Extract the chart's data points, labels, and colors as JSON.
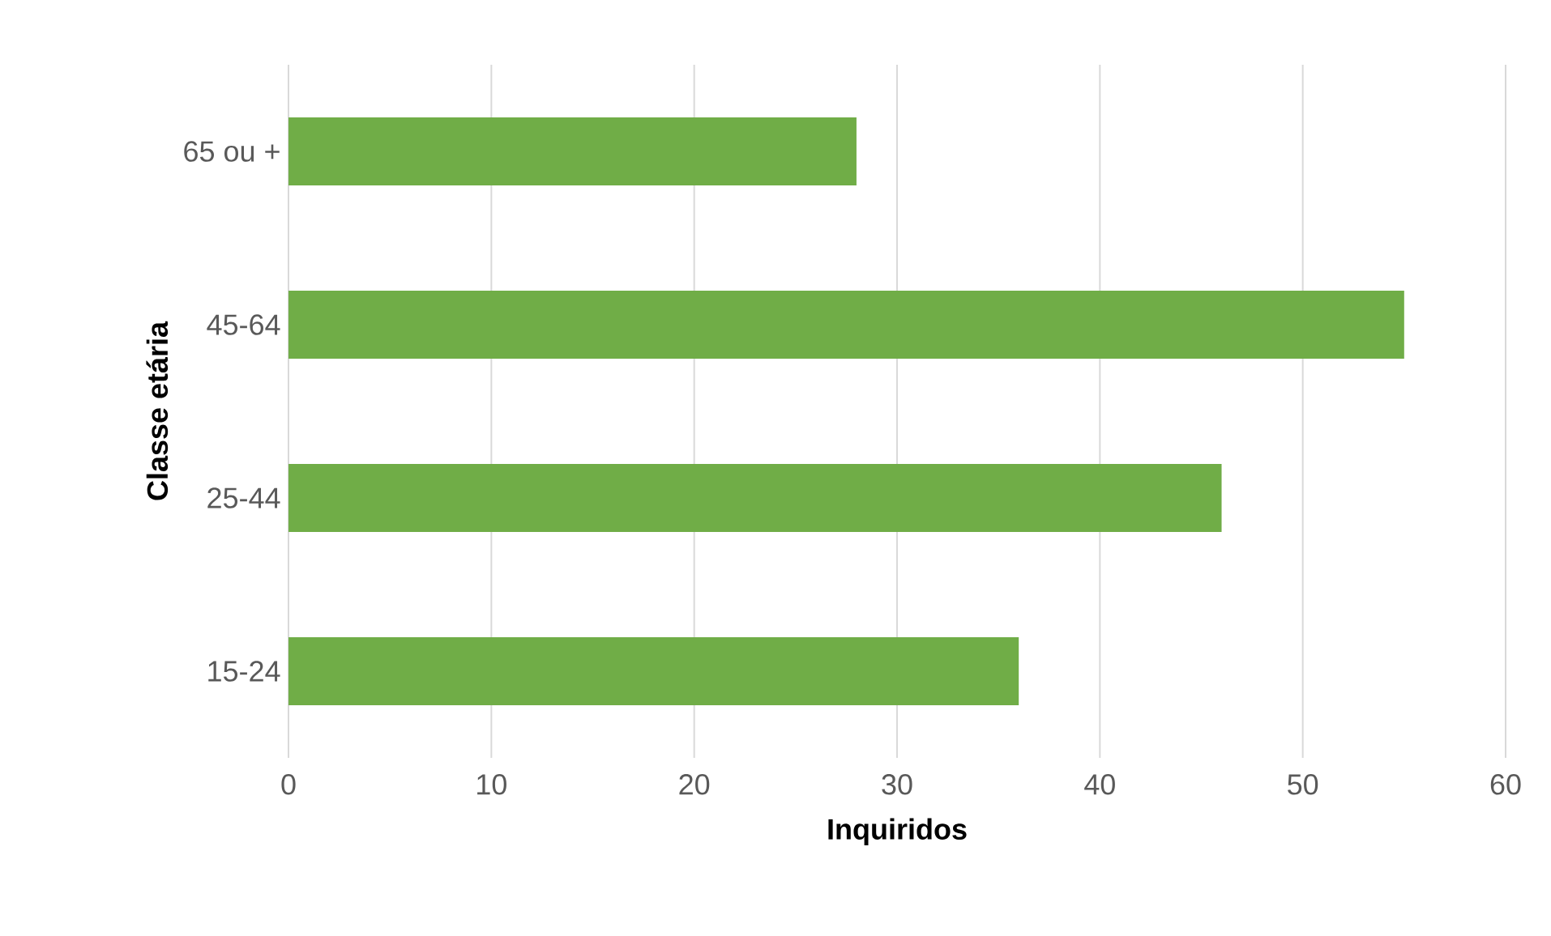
{
  "chart_data": {
    "type": "bar",
    "orientation": "horizontal",
    "categories": [
      "65 ou +",
      "45-64",
      "25-44",
      "15-24"
    ],
    "values": [
      28,
      55,
      46,
      36
    ],
    "color": "#70ad47",
    "xlabel": "Inquiridos",
    "ylabel": "Classe etária",
    "xlim": [
      0,
      60
    ],
    "xticks": [
      0,
      10,
      20,
      30,
      40,
      50,
      60
    ],
    "grid": "x"
  }
}
